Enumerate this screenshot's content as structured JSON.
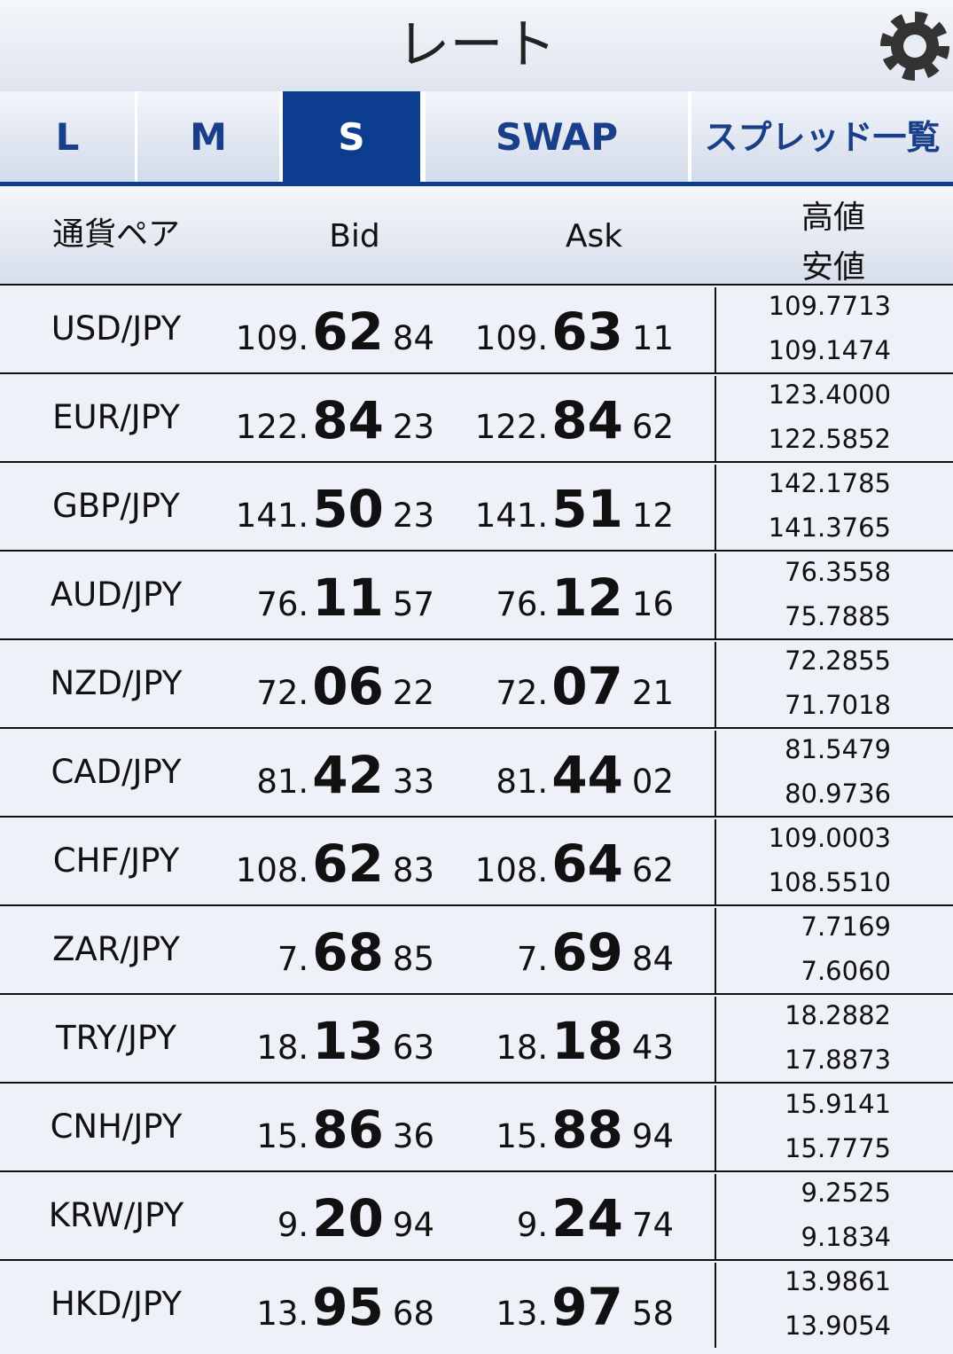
{
  "header": {
    "title": "レート"
  },
  "tabs": {
    "items": [
      "L",
      "M",
      "S",
      "SWAP",
      "スプレッド一覧"
    ],
    "active": 2
  },
  "table": {
    "columns": {
      "pair": "通貨ペア",
      "bid": "Bid",
      "ask": "Ask",
      "high": "高値",
      "low": "安値"
    },
    "rows": [
      {
        "pair": "USD/JPY",
        "bid": [
          "109.",
          "62",
          "84"
        ],
        "ask": [
          "109.",
          "63",
          "11"
        ],
        "high": "109.7713",
        "low": "109.1474"
      },
      {
        "pair": "EUR/JPY",
        "bid": [
          "122.",
          "84",
          "23"
        ],
        "ask": [
          "122.",
          "84",
          "62"
        ],
        "high": "123.4000",
        "low": "122.5852"
      },
      {
        "pair": "GBP/JPY",
        "bid": [
          "141.",
          "50",
          "23"
        ],
        "ask": [
          "141.",
          "51",
          "12"
        ],
        "high": "142.1785",
        "low": "141.3765"
      },
      {
        "pair": "AUD/JPY",
        "bid": [
          "76.",
          "11",
          "57"
        ],
        "ask": [
          "76.",
          "12",
          "16"
        ],
        "high": "76.3558",
        "low": "75.7885"
      },
      {
        "pair": "NZD/JPY",
        "bid": [
          "72.",
          "06",
          "22"
        ],
        "ask": [
          "72.",
          "07",
          "21"
        ],
        "high": "72.2855",
        "low": "71.7018"
      },
      {
        "pair": "CAD/JPY",
        "bid": [
          "81.",
          "42",
          "33"
        ],
        "ask": [
          "81.",
          "44",
          "02"
        ],
        "high": "81.5479",
        "low": "80.9736"
      },
      {
        "pair": "CHF/JPY",
        "bid": [
          "108.",
          "62",
          "83"
        ],
        "ask": [
          "108.",
          "64",
          "62"
        ],
        "high": "109.0003",
        "low": "108.5510"
      },
      {
        "pair": "ZAR/JPY",
        "bid": [
          "7.",
          "68",
          "85"
        ],
        "ask": [
          "7.",
          "69",
          "84"
        ],
        "high": "7.7169",
        "low": "7.6060"
      },
      {
        "pair": "TRY/JPY",
        "bid": [
          "18.",
          "13",
          "63"
        ],
        "ask": [
          "18.",
          "18",
          "43"
        ],
        "high": "18.2882",
        "low": "17.8873"
      },
      {
        "pair": "CNH/JPY",
        "bid": [
          "15.",
          "86",
          "36"
        ],
        "ask": [
          "15.",
          "88",
          "94"
        ],
        "high": "15.9141",
        "low": "15.7775"
      },
      {
        "pair": "KRW/JPY",
        "bid": [
          "9.",
          "20",
          "94"
        ],
        "ask": [
          "9.",
          "24",
          "74"
        ],
        "high": "9.2525",
        "low": "9.1834"
      },
      {
        "pair": "HKD/JPY",
        "bid": [
          "13.",
          "95",
          "68"
        ],
        "ask": [
          "13.",
          "97",
          "58"
        ],
        "high": "13.9861",
        "low": "13.9054"
      }
    ]
  }
}
